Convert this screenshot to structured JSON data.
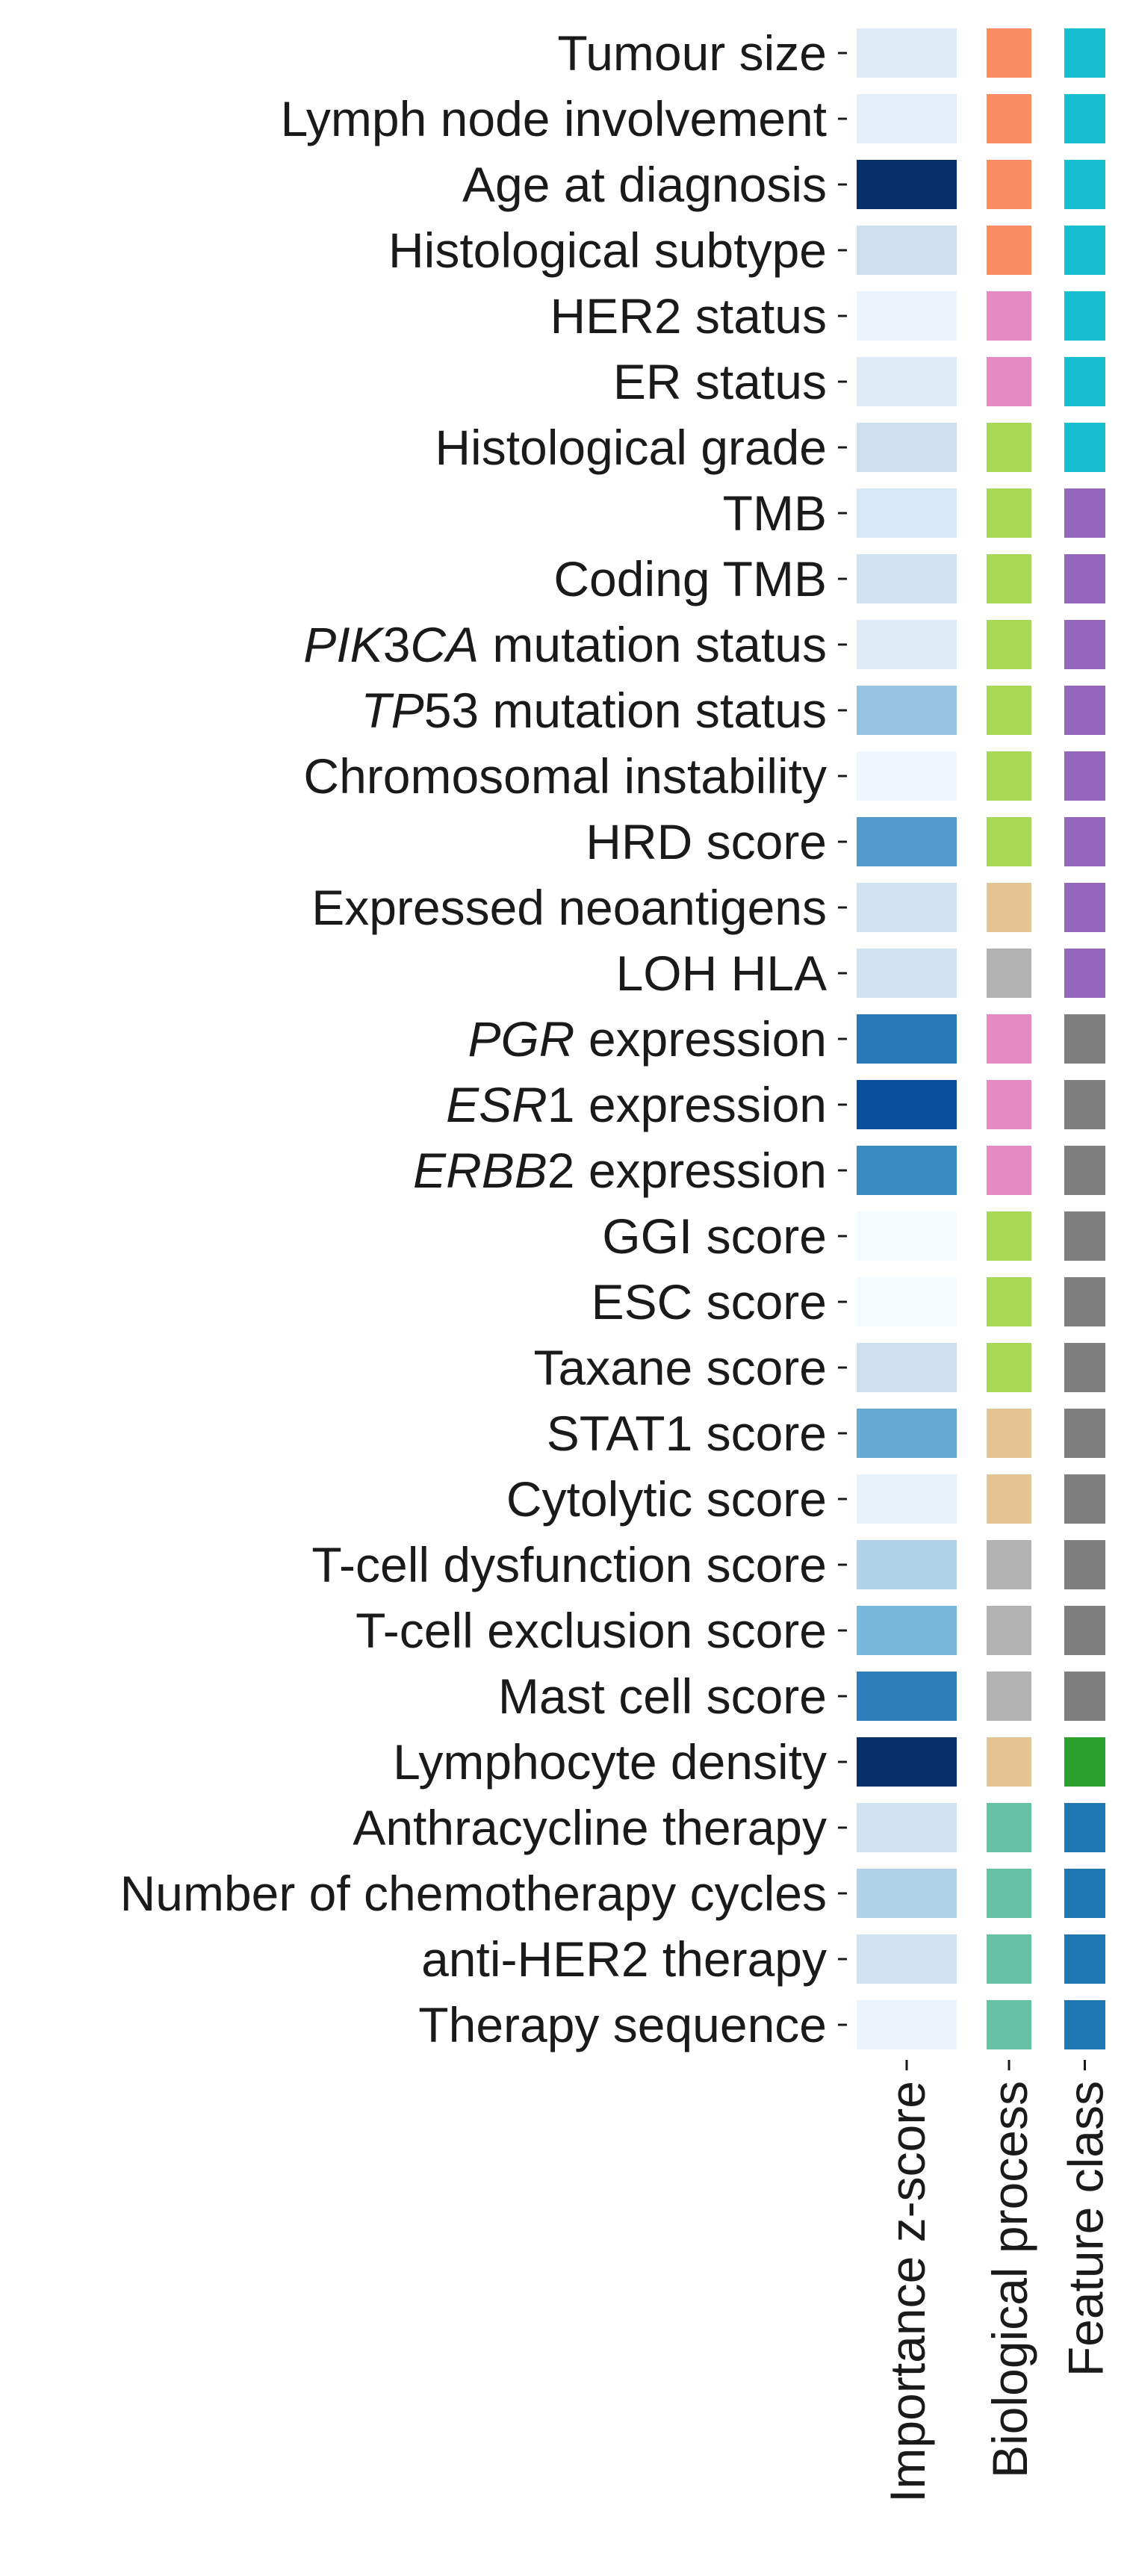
{
  "chart_data": {
    "type": "heatmap",
    "columns": [
      "Importance z-score",
      "Biological process",
      "Feature class"
    ],
    "rows": [
      {
        "parts": [
          {
            "t": "Tumour size"
          }
        ],
        "z": 0.12,
        "bio": "#fc8d62",
        "cls": "#17becf"
      },
      {
        "parts": [
          {
            "t": "Lymph node involvement"
          }
        ],
        "z": 0.1,
        "bio": "#fc8d62",
        "cls": "#17becf"
      },
      {
        "parts": [
          {
            "t": "Age at diagnosis"
          }
        ],
        "z": 1.0,
        "bio": "#fc8d62",
        "cls": "#17becf"
      },
      {
        "parts": [
          {
            "t": "Histological subtype"
          }
        ],
        "z": 0.22,
        "bio": "#fc8d62",
        "cls": "#17becf"
      },
      {
        "parts": [
          {
            "t": "HER2 status"
          }
        ],
        "z": 0.06,
        "bio": "#e78ac3",
        "cls": "#17becf"
      },
      {
        "parts": [
          {
            "t": "ER status"
          }
        ],
        "z": 0.12,
        "bio": "#e78ac3",
        "cls": "#17becf"
      },
      {
        "parts": [
          {
            "t": "Histological grade"
          }
        ],
        "z": 0.22,
        "bio": "#a6d854",
        "cls": "#17becf"
      },
      {
        "parts": [
          {
            "t": "TMB"
          }
        ],
        "z": 0.16,
        "bio": "#a6d854",
        "cls": "#9467bd"
      },
      {
        "parts": [
          {
            "t": "Coding TMB"
          }
        ],
        "z": 0.2,
        "bio": "#a6d854",
        "cls": "#9467bd"
      },
      {
        "parts": [
          {
            "t": "PIK",
            "i": true
          },
          {
            "t": "3"
          },
          {
            "t": "CA",
            "i": true
          },
          {
            "t": " mutation status"
          }
        ],
        "z": 0.12,
        "bio": "#a6d854",
        "cls": "#9467bd"
      },
      {
        "parts": [
          {
            "t": "TP",
            "i": true
          },
          {
            "t": "53 mutation status"
          }
        ],
        "z": 0.4,
        "bio": "#a6d854",
        "cls": "#9467bd"
      },
      {
        "parts": [
          {
            "t": "Chromosomal instability"
          }
        ],
        "z": 0.04,
        "bio": "#a6d854",
        "cls": "#9467bd"
      },
      {
        "parts": [
          {
            "t": "HRD score"
          }
        ],
        "z": 0.58,
        "bio": "#a6d854",
        "cls": "#9467bd"
      },
      {
        "parts": [
          {
            "t": "Expressed neoantigens"
          }
        ],
        "z": 0.2,
        "bio": "#e5c494",
        "cls": "#9467bd"
      },
      {
        "parts": [
          {
            "t": "LOH HLA"
          }
        ],
        "z": 0.2,
        "bio": "#b3b3b3",
        "cls": "#9467bd"
      },
      {
        "parts": [
          {
            "t": "PGR",
            "i": true
          },
          {
            "t": " expression"
          }
        ],
        "z": 0.72,
        "bio": "#e78ac3",
        "cls": "#7f7f7f"
      },
      {
        "parts": [
          {
            "t": "ESR",
            "i": true
          },
          {
            "t": "1 expression"
          }
        ],
        "z": 0.88,
        "bio": "#e78ac3",
        "cls": "#7f7f7f"
      },
      {
        "parts": [
          {
            "t": "ERBB",
            "i": true
          },
          {
            "t": "2 expression"
          }
        ],
        "z": 0.65,
        "bio": "#e78ac3",
        "cls": "#7f7f7f"
      },
      {
        "parts": [
          {
            "t": "GGI score"
          }
        ],
        "z": 0.01,
        "bio": "#a6d854",
        "cls": "#7f7f7f"
      },
      {
        "parts": [
          {
            "t": "ESC score"
          }
        ],
        "z": 0.01,
        "bio": "#a6d854",
        "cls": "#7f7f7f"
      },
      {
        "parts": [
          {
            "t": "Taxane score"
          }
        ],
        "z": 0.22,
        "bio": "#a6d854",
        "cls": "#7f7f7f"
      },
      {
        "parts": [
          {
            "t": "STAT1 score"
          }
        ],
        "z": 0.52,
        "bio": "#e5c494",
        "cls": "#7f7f7f"
      },
      {
        "parts": [
          {
            "t": "Cytolytic score"
          }
        ],
        "z": 0.08,
        "bio": "#e5c494",
        "cls": "#7f7f7f"
      },
      {
        "parts": [
          {
            "t": "T-cell dysfunction score"
          }
        ],
        "z": 0.32,
        "bio": "#b3b3b3",
        "cls": "#7f7f7f"
      },
      {
        "parts": [
          {
            "t": "T-cell exclusion score"
          }
        ],
        "z": 0.46,
        "bio": "#b3b3b3",
        "cls": "#7f7f7f"
      },
      {
        "parts": [
          {
            "t": "Mast cell score"
          }
        ],
        "z": 0.7,
        "bio": "#b3b3b3",
        "cls": "#7f7f7f"
      },
      {
        "parts": [
          {
            "t": "Lymphocyte density"
          }
        ],
        "z": 1.0,
        "bio": "#e5c494",
        "cls": "#2ca02c"
      },
      {
        "parts": [
          {
            "t": "Anthracycline therapy"
          }
        ],
        "z": 0.2,
        "bio": "#66c2a5",
        "cls": "#1f77b4"
      },
      {
        "parts": [
          {
            "t": "Number of chemotherapy cycles"
          }
        ],
        "z": 0.32,
        "bio": "#66c2a5",
        "cls": "#1f77b4"
      },
      {
        "parts": [
          {
            "t": "anti-HER2 therapy"
          }
        ],
        "z": 0.2,
        "bio": "#66c2a5",
        "cls": "#1f77b4"
      },
      {
        "parts": [
          {
            "t": "Therapy sequence"
          }
        ],
        "z": 0.06,
        "bio": "#66c2a5",
        "cls": "#1f77b4"
      }
    ]
  }
}
